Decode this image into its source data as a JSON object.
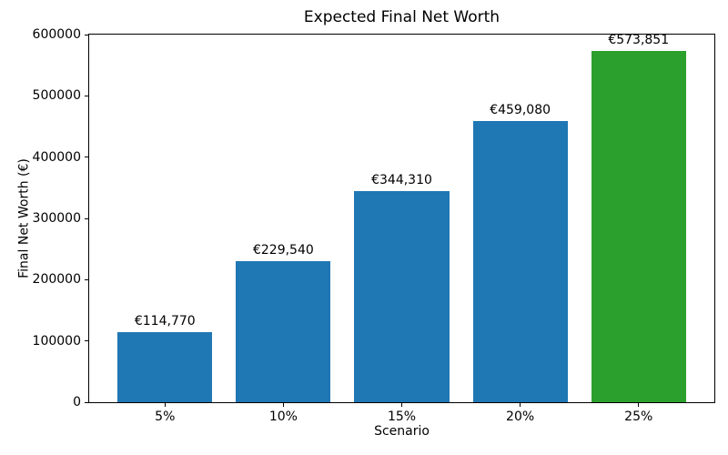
{
  "chart_data": {
    "type": "bar",
    "title": "Expected Final Net Worth",
    "xlabel": "Scenario",
    "ylabel": "Final Net Worth (€)",
    "categories": [
      "5%",
      "10%",
      "15%",
      "20%",
      "25%"
    ],
    "values": [
      114770,
      229540,
      344310,
      459080,
      573851
    ],
    "bar_labels": [
      "€114,770",
      "€229,540",
      "€344,310",
      "€459,080",
      "€573,851"
    ],
    "bar_colors": [
      "#1f77b4",
      "#1f77b4",
      "#1f77b4",
      "#1f77b4",
      "#2ca02c"
    ],
    "ylim": [
      0,
      600000
    ],
    "yticks": [
      0,
      100000,
      200000,
      300000,
      400000,
      500000,
      600000
    ],
    "ytick_labels": [
      "0",
      "100000",
      "200000",
      "300000",
      "400000",
      "500000",
      "600000"
    ],
    "grid": false,
    "legend_position": "none",
    "colors": {
      "default_bar": "#1f77b4",
      "highlight_bar": "#2ca02c",
      "axis": "#000000",
      "background": "#ffffff"
    }
  }
}
